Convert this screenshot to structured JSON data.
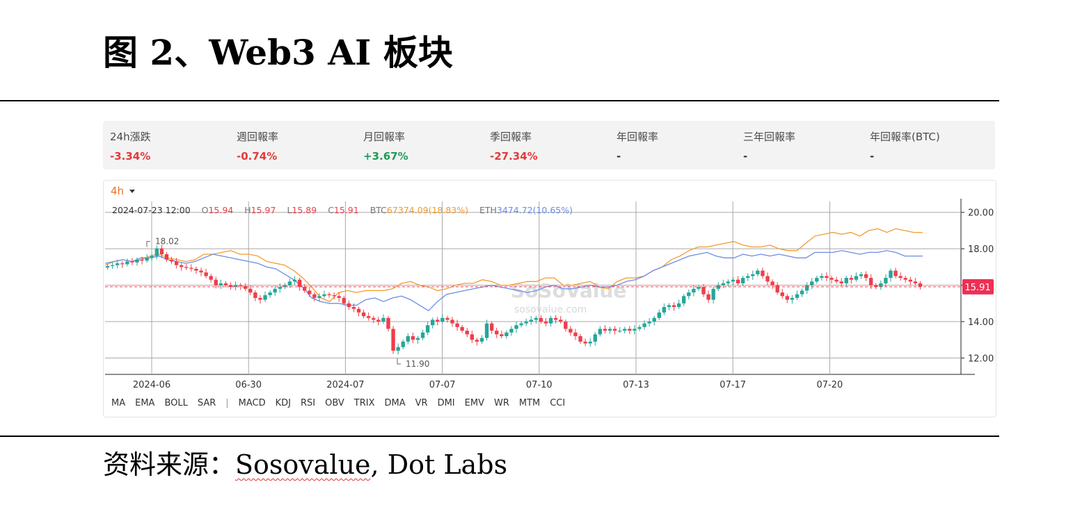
{
  "figure_title": "图  2、Web3 AI 板块",
  "stats": [
    {
      "label": "24h漲跌",
      "value": "-3.34%",
      "color": "#e23b3b"
    },
    {
      "label": "週回報率",
      "value": "-0.74%",
      "color": "#e23b3b"
    },
    {
      "label": "月回報率",
      "value": "+3.67%",
      "color": "#1f9d55"
    },
    {
      "label": "季回報率",
      "value": "-27.34%",
      "color": "#e23b3b"
    },
    {
      "label": "年回報率",
      "value": "-",
      "color": "#333333"
    },
    {
      "label": "三年回報率",
      "value": "-",
      "color": "#333333"
    },
    {
      "label": "年回報率(BTC)",
      "value": "-",
      "color": "#333333"
    }
  ],
  "timeframe": "4h",
  "ohlc": {
    "time": "2024-07-23 12:00",
    "o_label": "O",
    "o": "15.94",
    "h_label": "H",
    "h": "15.97",
    "l_label": "L",
    "l": "15.89",
    "c_label": "C",
    "c": "15.91",
    "btc_label": "BTC",
    "btc": "67374.09(18.83%)",
    "eth_label": "ETH",
    "eth": "3474.72(10.65%)"
  },
  "watermark": {
    "brand": "SoSoValue",
    "site": "sosovalue.com"
  },
  "indicators_left": [
    "MA",
    "EMA",
    "BOLL",
    "SAR"
  ],
  "indicator_separator": "|",
  "indicators_right": [
    "MACD",
    "KDJ",
    "RSI",
    "OBV",
    "TRIX",
    "DMA",
    "VR",
    "DMI",
    "EMV",
    "WR",
    "MTM",
    "CCI"
  ],
  "source": {
    "prefix": "资料来源：",
    "text1": "Sosovalue",
    "text2": ", Dot Labs"
  },
  "chart_data": {
    "type": "line",
    "y_ticks": [
      "20.00",
      "18.00",
      "16.00",
      "14.00",
      "12.00"
    ],
    "y_tick_values": [
      20,
      18,
      16,
      14,
      12
    ],
    "ylim": [
      11.1,
      20.6
    ],
    "x_ticks": [
      "2024-06",
      "06-30",
      "2024-07",
      "07-07",
      "07-10",
      "07-13",
      "07-17",
      "07-20"
    ],
    "last_price": 15.91,
    "last_price_label": "15.91",
    "high_marker": {
      "label": "18.02",
      "value": 18.02
    },
    "low_marker": {
      "label": "11.90",
      "value": 11.9
    },
    "up_color": "#26a69a",
    "down_color": "#ef3e4a",
    "candles_close": [
      17.05,
      17.1,
      17.2,
      17.15,
      17.3,
      17.25,
      17.4,
      17.35,
      17.5,
      17.6,
      18.02,
      17.7,
      17.4,
      17.3,
      17.1,
      17.0,
      16.95,
      16.9,
      16.8,
      16.7,
      16.5,
      16.3,
      16.0,
      16.1,
      16.0,
      15.9,
      16.0,
      15.95,
      15.8,
      15.6,
      15.3,
      15.2,
      15.45,
      15.6,
      15.8,
      15.9,
      16.0,
      16.2,
      16.3,
      15.9,
      15.7,
      15.5,
      15.3,
      15.4,
      15.5,
      15.45,
      15.4,
      15.3,
      15.0,
      14.8,
      14.7,
      14.5,
      14.3,
      14.2,
      14.1,
      14.0,
      14.2,
      13.6,
      12.4,
      12.6,
      12.9,
      13.2,
      13.0,
      13.1,
      13.4,
      13.8,
      14.1,
      14.0,
      14.2,
      14.1,
      13.9,
      13.7,
      13.5,
      13.3,
      13.0,
      12.9,
      13.1,
      13.9,
      13.5,
      13.3,
      13.2,
      13.4,
      13.6,
      13.8,
      13.9,
      14.0,
      14.1,
      14.2,
      14.0,
      13.9,
      14.2,
      14.1,
      14.0,
      13.6,
      13.4,
      13.2,
      12.9,
      12.8,
      12.9,
      13.3,
      13.6,
      13.5,
      13.6,
      13.5,
      13.5,
      13.6,
      13.5,
      13.6,
      13.7,
      13.9,
      14.0,
      14.2,
      14.5,
      14.8,
      14.9,
      14.8,
      15.0,
      15.4,
      15.6,
      15.8,
      15.9,
      15.5,
      15.2,
      15.8,
      16.0,
      16.1,
      16.2,
      16.3,
      16.1,
      16.4,
      16.5,
      16.6,
      16.8,
      16.5,
      16.2,
      16.0,
      15.6,
      15.4,
      15.2,
      15.3,
      15.5,
      15.7,
      16.0,
      16.2,
      16.4,
      16.5,
      16.4,
      16.3,
      16.2,
      16.1,
      16.4,
      16.3,
      16.5,
      16.6,
      16.4,
      16.0,
      15.9,
      16.1,
      16.4,
      16.8,
      16.5,
      16.4,
      16.3,
      16.2,
      16.1,
      15.91
    ],
    "series": [
      {
        "name": "BTC",
        "color": "#f29a2e",
        "values": [
          17.1,
          17.3,
          17.4,
          17.3,
          17.4,
          17.6,
          17.7,
          17.5,
          17.4,
          17.3,
          17.4,
          17.7,
          17.7,
          17.8,
          17.9,
          17.7,
          17.7,
          17.6,
          17.3,
          17.2,
          17.1,
          16.8,
          16.4,
          15.9,
          15.3,
          15.1,
          15.6,
          15.7,
          15.6,
          15.7,
          15.7,
          15.7,
          15.8,
          16.1,
          16.2,
          16.0,
          15.9,
          15.7,
          15.8,
          16.0,
          16.1,
          16.1,
          16.3,
          16.2,
          16.0,
          16.0,
          16.1,
          16.2,
          16.2,
          16.4,
          16.4,
          16.0,
          16.0,
          16.1,
          16.2,
          15.9,
          15.8,
          16.2,
          16.4,
          16.4,
          16.5,
          16.8,
          17.0,
          17.4,
          17.6,
          17.9,
          18.1,
          18.1,
          18.2,
          18.3,
          18.4,
          18.2,
          18.1,
          18.1,
          18.2,
          18.0,
          17.9,
          17.9,
          18.3,
          18.7,
          18.8,
          18.9,
          18.8,
          18.9,
          18.7,
          19.0,
          19.1,
          18.9,
          19.1,
          19.0,
          18.9,
          18.9
        ]
      },
      {
        "name": "ETH",
        "color": "#6b8ce8",
        "values": [
          17.2,
          17.3,
          17.4,
          17.3,
          17.5,
          17.5,
          17.6,
          17.4,
          17.3,
          17.2,
          17.3,
          17.5,
          17.7,
          17.6,
          17.5,
          17.4,
          17.3,
          17.2,
          17.0,
          16.9,
          16.6,
          16.3,
          15.9,
          15.3,
          15.1,
          15.0,
          15.0,
          14.9,
          14.9,
          15.2,
          15.3,
          15.1,
          15.3,
          15.4,
          15.2,
          14.9,
          14.6,
          15.1,
          15.5,
          15.6,
          15.7,
          15.8,
          15.9,
          16.0,
          15.9,
          15.8,
          15.7,
          15.6,
          15.7,
          15.9,
          16.0,
          15.8,
          15.8,
          15.9,
          16.0,
          15.9,
          15.9,
          16.0,
          16.2,
          16.3,
          16.5,
          16.8,
          17.0,
          17.2,
          17.4,
          17.6,
          17.7,
          17.8,
          17.6,
          17.5,
          17.5,
          17.7,
          17.6,
          17.7,
          17.6,
          17.7,
          17.6,
          17.5,
          17.5,
          17.8,
          17.8,
          17.8,
          17.9,
          17.8,
          17.7,
          17.8,
          17.8,
          17.9,
          17.8,
          17.6,
          17.6,
          17.6
        ]
      }
    ]
  }
}
